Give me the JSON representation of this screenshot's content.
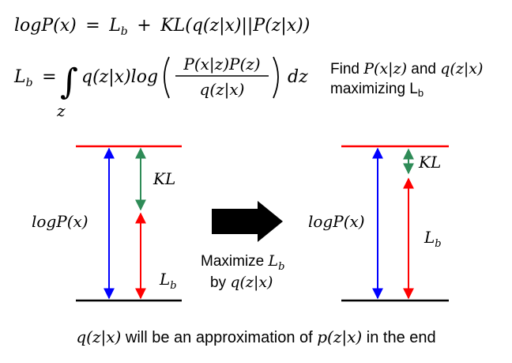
{
  "equations": {
    "eq1": {
      "lhs": "logP(x)",
      "eq": "=",
      "lb": "L",
      "lb_sub": "b",
      "plus": "+",
      "kl": "KL",
      "kl_arg": "(q(z|x)||P(z|x))"
    },
    "eq2": {
      "lb": "L",
      "lb_sub": "b",
      "eq": "=",
      "integral": "∫",
      "int_var": "z",
      "q_term": "q(z|x)log",
      "numerator": "P(x|z)P(z)",
      "denominator": "q(z|x)",
      "dz": "dz"
    },
    "note": {
      "line1_a": "Find ",
      "line1_b": "P(x|z)",
      "line1_c": " and ",
      "line1_d": "q(z|x)",
      "line2_a": "maximizing L",
      "line2_sub": "b"
    }
  },
  "diagram": {
    "left": {
      "logp": "logP(x)",
      "kl": "KL",
      "lb": "L",
      "lb_sub": "b"
    },
    "right": {
      "logp": "logP(x)",
      "kl": "KL",
      "lb": "L",
      "lb_sub": "b"
    },
    "arrow_label": {
      "line1_a": "Maximize ",
      "line1_b": "L",
      "line1_sub": "b",
      "line2_a": "by ",
      "line2_b": "q(z|x)"
    },
    "colors": {
      "top_line": "#ff0000",
      "bottom_line": "#000000",
      "logp_arrow": "#0000ff",
      "kl_arrow": "#2e8b57",
      "lb_arrow": "#ff0000",
      "big_arrow": "#000000"
    }
  },
  "footer": {
    "a": "q(z|x)",
    "b": " will be an approximation of ",
    "c": "p(z|x)",
    "d": " in the end"
  }
}
